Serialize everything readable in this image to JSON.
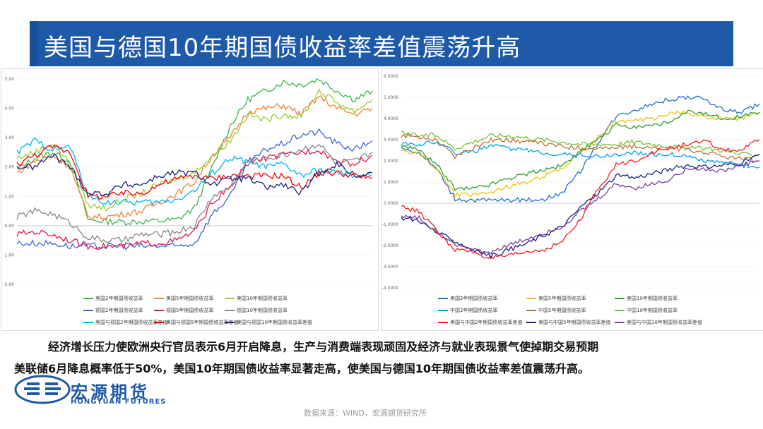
{
  "title": "美国与德国10年期国债收益率差值震荡升高",
  "paragraph1": "经济增长压力使欧洲央行官员表示6月开启降息，生产与消费端表现顽固及经济与就业表现景气使掉期交易预期",
  "paragraph2": "美联储6月降息概率低于50%，美国10年期国债收益率显著走高，使美国与德国10年期国债收益率差值震荡升高。",
  "logo": {
    "cn": "宏源期货",
    "en": "HONGYUAN FUTURES"
  },
  "source": "数据来源：WIND，宏源期货研究所",
  "colors": {
    "title_bg": "#1f5aa8",
    "logo": "#1f5aa8"
  },
  "chart_data": [
    {
      "type": "line",
      "yticks": [
        "5.00",
        "4.00",
        "3.00",
        "2.00",
        "1.00",
        "0.00",
        "-1.00",
        "-2.00"
      ],
      "ylim": [
        -2,
        5
      ],
      "x": [
        0,
        1,
        2,
        3,
        4,
        5,
        6,
        7,
        8,
        9,
        10,
        11,
        12,
        13,
        14,
        15,
        16,
        17,
        18,
        19,
        20
      ],
      "series": [
        {
          "name": "美国2年期国债收益率",
          "color": "#3cb44b",
          "values": [
            1.9,
            2.3,
            2.5,
            2.2,
            0.2,
            0.15,
            0.13,
            0.14,
            0.16,
            0.2,
            0.6,
            2.0,
            3.4,
            4.3,
            4.6,
            4.9,
            4.8,
            5.0,
            4.6,
            4.3,
            4.6
          ]
        },
        {
          "name": "美国5年期国债收益率",
          "color": "#f58231",
          "values": [
            1.8,
            2.2,
            2.4,
            2.0,
            0.3,
            0.3,
            0.4,
            0.5,
            0.8,
            1.1,
            1.5,
            2.4,
            3.0,
            3.9,
            4.0,
            4.1,
            3.8,
            4.4,
            4.0,
            3.8,
            4.0
          ]
        },
        {
          "name": "美国10年期国债收益率",
          "color": "#9acd32",
          "values": [
            2.3,
            2.5,
            2.8,
            2.1,
            0.7,
            0.6,
            0.9,
            1.1,
            1.4,
            1.6,
            1.8,
            2.4,
            2.9,
            3.8,
            3.6,
            3.8,
            3.7,
            4.6,
            4.2,
            3.9,
            4.3
          ]
        },
        {
          "name": "德国2年期国债收益率",
          "color": "#4363d8",
          "values": [
            -0.6,
            -0.6,
            -0.6,
            -0.7,
            -0.7,
            -0.7,
            -0.7,
            -0.7,
            -0.7,
            -0.7,
            -0.6,
            0.4,
            1.0,
            2.1,
            2.6,
            2.8,
            3.1,
            3.2,
            2.8,
            2.6,
            2.9
          ]
        },
        {
          "name": "德国5年期国债收益率",
          "color": "#e6194b",
          "values": [
            -0.3,
            -0.2,
            -0.3,
            -0.5,
            -0.7,
            -0.7,
            -0.7,
            -0.6,
            -0.6,
            -0.5,
            -0.2,
            0.8,
            1.3,
            2.2,
            2.3,
            2.4,
            2.5,
            2.6,
            2.2,
            2.1,
            2.4
          ]
        },
        {
          "name": "德国10年期国债收益率",
          "color": "#888888",
          "values": [
            0.3,
            0.5,
            0.4,
            0.1,
            -0.4,
            -0.5,
            -0.5,
            -0.3,
            -0.3,
            -0.2,
            0.0,
            1.0,
            1.3,
            2.2,
            2.3,
            2.4,
            2.6,
            2.8,
            2.1,
            2.2,
            2.5
          ]
        },
        {
          "name": "美国与德国2年期国债收益率差值",
          "color": "#00b4f0",
          "values": [
            2.5,
            2.9,
            2.6,
            2.7,
            1.0,
            0.8,
            0.8,
            0.8,
            0.8,
            0.9,
            1.2,
            1.8,
            2.3,
            2.2,
            2.0,
            2.1,
            1.7,
            1.9,
            1.8,
            1.7,
            1.7
          ]
        },
        {
          "name": "美国与德国5年期国债收益率差值",
          "color": "#ff0000",
          "values": [
            2.1,
            2.4,
            2.7,
            2.5,
            1.0,
            1.0,
            1.1,
            1.1,
            1.4,
            1.6,
            1.7,
            1.6,
            1.7,
            1.7,
            1.7,
            1.7,
            1.3,
            1.8,
            1.8,
            1.7,
            1.6
          ]
        },
        {
          "name": "美国与德国10年期国债收益率差值",
          "color": "#1a237e",
          "values": [
            2.0,
            2.0,
            2.4,
            2.0,
            1.1,
            1.1,
            1.4,
            1.4,
            1.7,
            1.8,
            1.8,
            1.4,
            1.6,
            1.6,
            1.3,
            1.4,
            1.1,
            1.8,
            2.1,
            1.7,
            1.8
          ]
        }
      ]
    },
    {
      "type": "line",
      "yticks": [
        "6.0000",
        "5.0000",
        "4.0000",
        "3.0000",
        "2.0000",
        "1.0000",
        "0.0000",
        "-1.0000",
        "-2.0000",
        "-3.0000",
        "-4.0000"
      ],
      "ylim": [
        -4,
        6
      ],
      "x": [
        0,
        1,
        2,
        3,
        4,
        5,
        6,
        7,
        8,
        9,
        10,
        11,
        12,
        13,
        14,
        15,
        16,
        17,
        18,
        19,
        20
      ],
      "series": [
        {
          "name": "美国2年期国债收益率",
          "color": "#1f6fd0",
          "values": [
            2.6,
            2.4,
            1.6,
            0.2,
            0.15,
            0.13,
            0.15,
            0.16,
            0.2,
            0.5,
            1.5,
            2.9,
            4.1,
            4.4,
            4.7,
            4.9,
            5.0,
            4.9,
            4.4,
            4.3,
            4.7
          ]
        },
        {
          "name": "美国5年期国债收益率",
          "color": "#f4c20d",
          "values": [
            2.5,
            2.3,
            1.6,
            0.4,
            0.4,
            0.5,
            0.8,
            1.0,
            1.3,
            1.6,
            2.4,
            3.1,
            3.9,
            3.9,
            4.0,
            4.2,
            4.3,
            4.1,
            4.0,
            4.0,
            4.3
          ]
        },
        {
          "name": "美国10年期国债收益率",
          "color": "#2ca02c",
          "values": [
            2.7,
            2.5,
            1.8,
            0.7,
            0.7,
            0.9,
            1.2,
            1.4,
            1.6,
            1.8,
            2.4,
            3.0,
            3.7,
            3.6,
            3.7,
            3.8,
            4.3,
            4.2,
            4.0,
            4.1,
            4.3
          ]
        },
        {
          "name": "中国2年期国债收益率",
          "color": "#00a0e9",
          "values": [
            2.8,
            2.8,
            2.9,
            2.4,
            2.4,
            2.7,
            2.6,
            2.5,
            2.4,
            2.3,
            2.3,
            2.2,
            2.3,
            2.4,
            2.3,
            2.3,
            2.2,
            2.0,
            1.9,
            1.8,
            1.7
          ]
        },
        {
          "name": "中国5年期国债收益率",
          "color": "#c0703a",
          "values": [
            3.2,
            3.1,
            3.0,
            2.2,
            2.6,
            3.0,
            3.0,
            2.9,
            2.8,
            2.7,
            2.6,
            2.6,
            2.6,
            2.7,
            2.6,
            2.6,
            2.5,
            2.4,
            2.2,
            2.1,
            2.0
          ]
        },
        {
          "name": "中国10年期国债收益率",
          "color": "#7cbf3a",
          "values": [
            3.3,
            3.2,
            3.2,
            2.6,
            2.9,
            3.2,
            3.2,
            3.1,
            3.0,
            2.9,
            2.8,
            2.8,
            2.8,
            2.9,
            2.8,
            2.7,
            2.6,
            2.6,
            2.5,
            2.3,
            2.3
          ]
        },
        {
          "name": "美国与中国2年期国债收益率差值",
          "color": "#ff1a1a",
          "values": [
            -0.2,
            -0.4,
            -1.3,
            -2.2,
            -2.3,
            -2.6,
            -2.5,
            -2.3,
            -2.2,
            -1.8,
            -0.8,
            0.7,
            1.8,
            2.0,
            2.4,
            2.6,
            2.8,
            2.9,
            2.5,
            2.5,
            3.0
          ]
        },
        {
          "name": "美国与中国5年期国债收益率差值",
          "color": "#1a237e",
          "values": [
            -0.7,
            -0.8,
            -1.4,
            -1.8,
            -2.2,
            -2.5,
            -2.2,
            -1.9,
            -1.5,
            -1.1,
            -0.2,
            0.5,
            1.3,
            1.2,
            1.4,
            1.6,
            1.8,
            1.7,
            1.8,
            1.9,
            2.3
          ]
        },
        {
          "name": "美国与中国10年期国债收益率差值",
          "color": "#7b3fa0",
          "values": [
            -0.6,
            -0.7,
            -1.4,
            -1.9,
            -2.2,
            -2.3,
            -2.0,
            -1.7,
            -1.4,
            -1.1,
            -0.4,
            0.2,
            0.9,
            0.7,
            0.9,
            1.1,
            1.7,
            1.6,
            1.5,
            1.8,
            2.0
          ]
        }
      ]
    }
  ]
}
